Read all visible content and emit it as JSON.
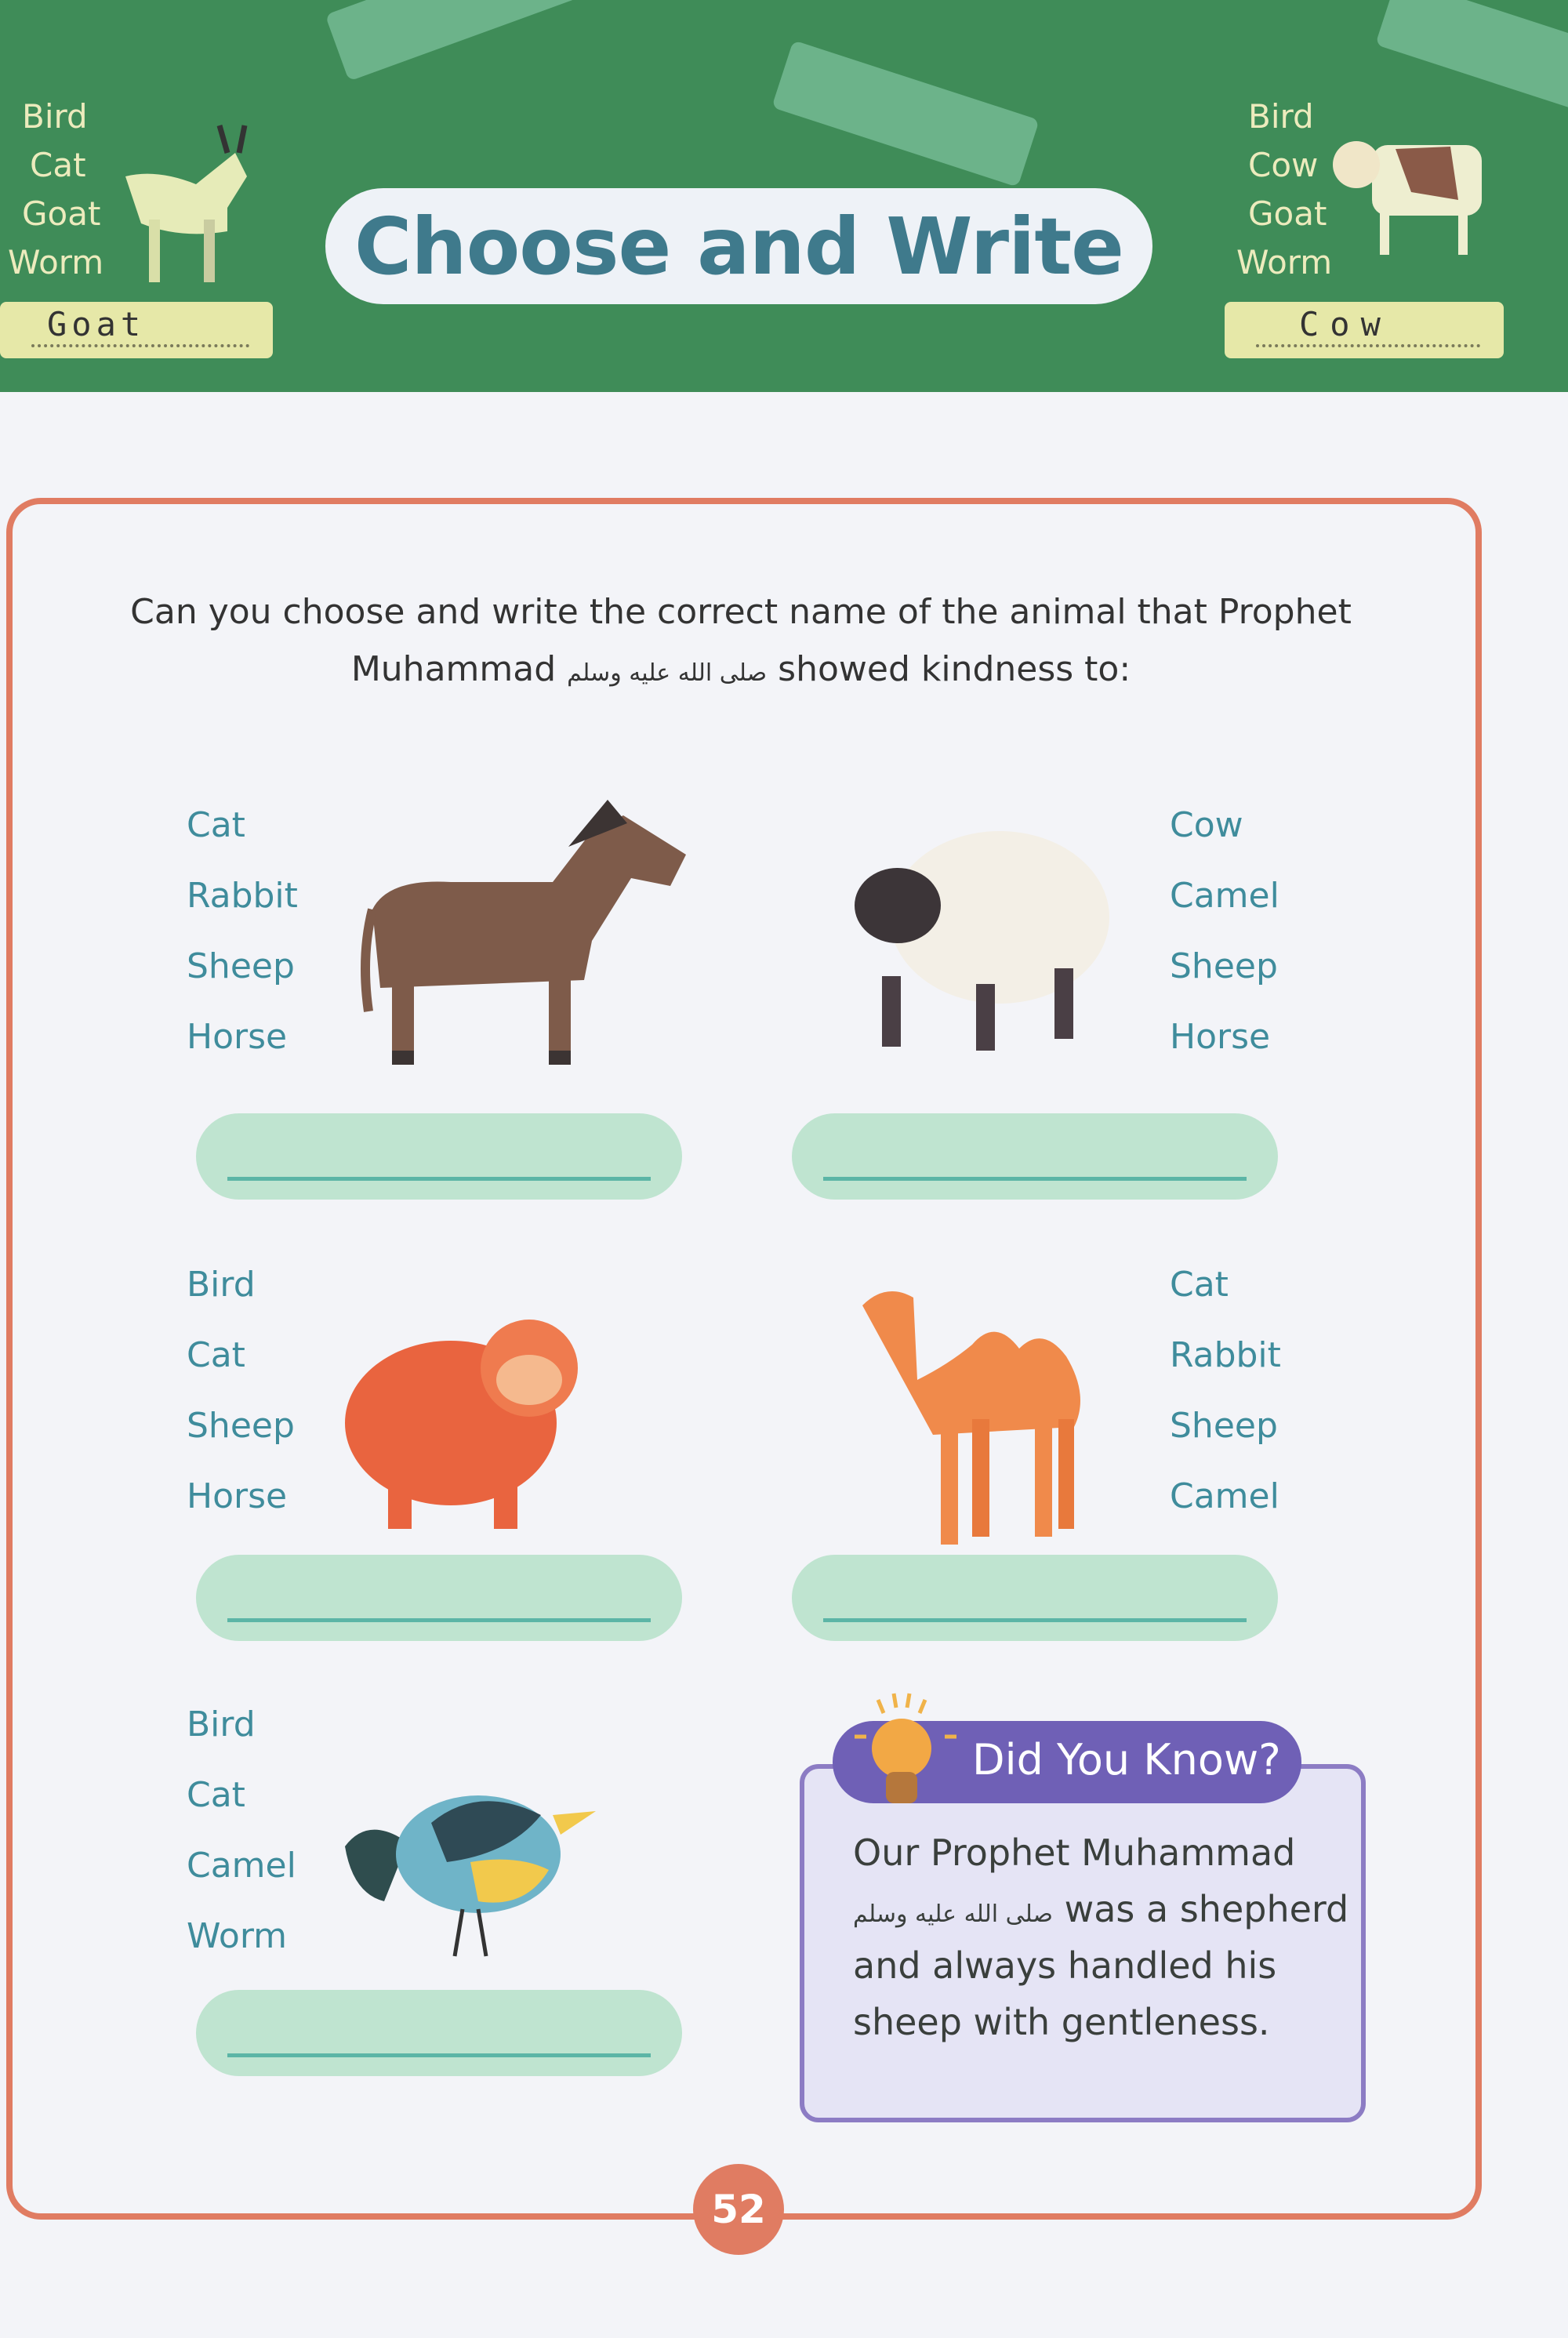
{
  "header": {
    "title": "Choose and Write",
    "left_example": {
      "options": [
        "Bird",
        "Cat",
        "Goat",
        "Worm"
      ],
      "answer": "Goat"
    },
    "right_example": {
      "options": [
        "Bird",
        "Cow",
        "Goat",
        "Worm"
      ],
      "answer": "Cow"
    }
  },
  "instruction": {
    "line1": "Can you choose and write the correct name of the animal that Prophet",
    "line2_before": "Muhammad",
    "honorific": "صلى الله عليه وسلم",
    "line2_after": "showed kindness to:"
  },
  "exercises": [
    {
      "animal_icon": "horse-icon",
      "options": [
        "Cat",
        "Rabbit",
        "Sheep",
        "Horse"
      ],
      "answer": ""
    },
    {
      "animal_icon": "sheep-icon",
      "options": [
        "Cow",
        "Camel",
        "Sheep",
        "Horse"
      ],
      "answer": ""
    },
    {
      "animal_icon": "cat-icon",
      "options": [
        "Bird",
        "Cat",
        "Sheep",
        "Horse"
      ],
      "answer": ""
    },
    {
      "animal_icon": "camel-icon",
      "options": [
        "Cat",
        "Rabbit",
        "Sheep",
        "Camel"
      ],
      "answer": ""
    },
    {
      "animal_icon": "bird-icon",
      "options": [
        "Bird",
        "Cat",
        "Camel",
        "Worm"
      ],
      "answer": ""
    }
  ],
  "did_you_know": {
    "title": "Did You Know?",
    "line1": "Our Prophet Muhammad",
    "line2_honorific": "صلى الله عليه وسلم",
    "line2": "was a shepherd",
    "line3": "and always handled his",
    "line4": "sheep with gentleness."
  },
  "page_number": "52",
  "colors": {
    "header_green": "#3f8c58",
    "frame": "#e07c62",
    "word_teal": "#3f8c9c",
    "answer_pill": "#bfe4d0",
    "did_you_know_purple": "#6f60b6"
  }
}
